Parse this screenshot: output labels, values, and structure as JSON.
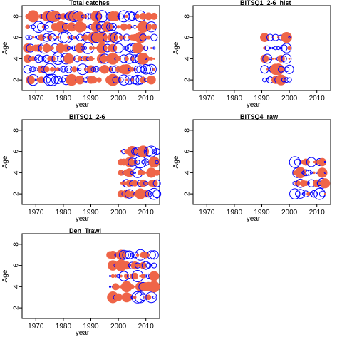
{
  "chart_data": [
    {
      "type": "scatter",
      "title": "Total catches",
      "xlabel": "year",
      "ylabel": "Age",
      "xlim": [
        1965,
        2015
      ],
      "ylim": [
        1,
        9
      ],
      "xticks": [
        "1970",
        "1980",
        "1990",
        "2000",
        "2010"
      ],
      "yticks": [
        "2",
        "4",
        "6",
        "8"
      ],
      "years": [
        1967,
        2013
      ],
      "ages": [
        2,
        3,
        4,
        5,
        6,
        7,
        8
      ],
      "seed": 11,
      "density": 0.9
    },
    {
      "type": "scatter",
      "title": "BITSQ1_2-6_hist",
      "xlabel": "year",
      "ylabel": "Age",
      "xlim": [
        1965,
        2015
      ],
      "ylim": [
        1,
        9
      ],
      "xticks": [
        "1970",
        "1980",
        "1990",
        "2000",
        "2010"
      ],
      "yticks": [
        "2",
        "4",
        "6",
        "8"
      ],
      "years": [
        1991,
        2000
      ],
      "ages": [
        2,
        3,
        4,
        5,
        6
      ],
      "seed": 23,
      "density": 1.0
    },
    {
      "type": "scatter",
      "title": "BITSQ1_2-6",
      "xlabel": "year",
      "ylabel": "Age",
      "xlim": [
        1965,
        2015
      ],
      "ylim": [
        1,
        9
      ],
      "xticks": [
        "1970",
        "1980",
        "1990",
        "2000",
        "2010"
      ],
      "yticks": [
        "2",
        "4",
        "6",
        "8"
      ],
      "years": [
        2001,
        2014
      ],
      "ages": [
        2,
        3,
        4,
        5,
        6
      ],
      "seed": 37,
      "density": 1.0
    },
    {
      "type": "scatter",
      "title": "BITSQ4_raw",
      "xlabel": "year",
      "ylabel": "Age",
      "xlim": [
        1965,
        2015
      ],
      "ylim": [
        1,
        9
      ],
      "xticks": [
        "1970",
        "1980",
        "1990",
        "2000",
        "2010"
      ],
      "yticks": [
        "2",
        "4",
        "6",
        "8"
      ],
      "years": [
        2002,
        2013
      ],
      "ages": [
        2,
        3,
        4,
        5
      ],
      "seed": 51,
      "density": 1.0
    },
    {
      "type": "scatter",
      "title": "Den_Trawl",
      "xlabel": "year",
      "ylabel": "Age",
      "xlim": [
        1965,
        2015
      ],
      "ylim": [
        1,
        9
      ],
      "xticks": [
        "1970",
        "1980",
        "1990",
        "2000",
        "2010"
      ],
      "yticks": [
        "2",
        "4",
        "6",
        "8"
      ],
      "years": [
        1997,
        2013
      ],
      "ages": [
        3,
        4,
        5,
        6,
        7
      ],
      "seed": 67,
      "density": 1.0
    }
  ],
  "colors": {
    "positive": "#ef6548",
    "negative": "#0000ff",
    "axis": "#000000"
  }
}
